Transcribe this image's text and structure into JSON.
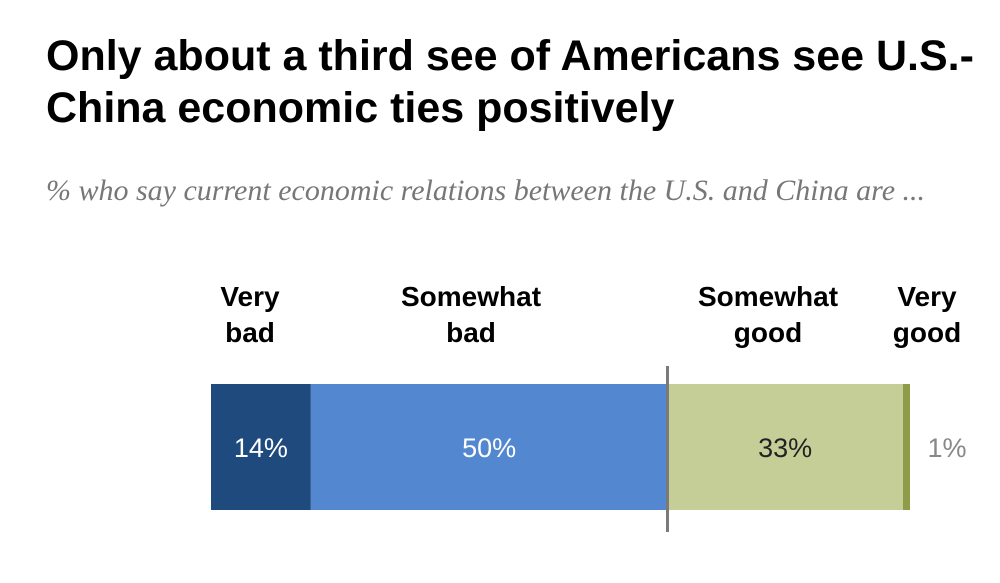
{
  "title": "Only about a third see of Americans see U.S.-China economic ties positively",
  "subtitle": "% who say current economic relations between the U.S. and China are ...",
  "colors": {
    "very_bad": "#1f4a7e",
    "somewhat_bad": "#5388d1",
    "somewhat_good": "#c6ce98",
    "very_good": "#8e9c4a",
    "divider": "#7a7a7a",
    "outside_label": "#888888"
  },
  "chart_data": {
    "type": "bar",
    "orientation": "horizontal",
    "stacked": true,
    "diverging": true,
    "categories": [
      "Very bad",
      "Somewhat bad",
      "Somewhat good",
      "Very good"
    ],
    "category_labels": [
      [
        "Very",
        "bad"
      ],
      [
        "Somewhat",
        "bad"
      ],
      [
        "Somewhat",
        "good"
      ],
      [
        "Very",
        "good"
      ]
    ],
    "values": [
      14,
      50,
      33,
      1
    ],
    "data_labels": [
      "14%",
      "50%",
      "33%",
      "1%"
    ],
    "unit": "%"
  }
}
